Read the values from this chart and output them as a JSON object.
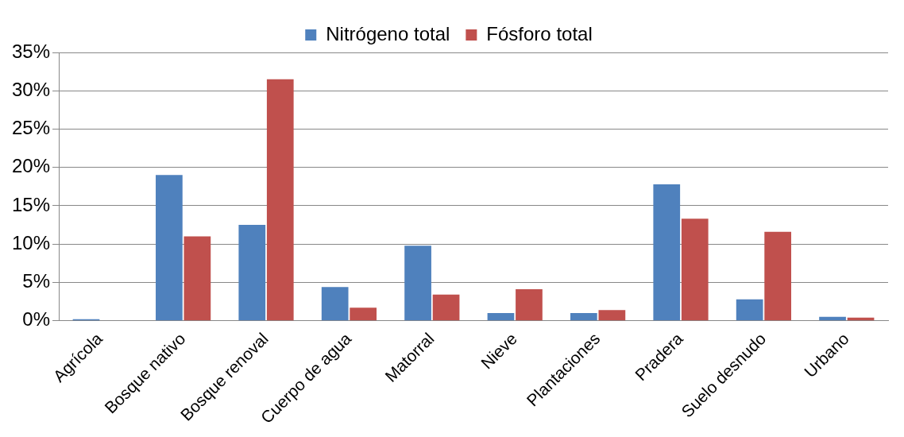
{
  "chart_data": {
    "type": "bar",
    "categories": [
      "Agrícola",
      "Bosque nativo",
      "Bosque renoval",
      "Cuerpo de agua",
      "Matorral",
      "Nieve",
      "Plantaciones",
      "Pradera",
      "Suelo desnudo",
      "Urbano"
    ],
    "series": [
      {
        "name": "Nitrógeno total",
        "color": "#4f81bd",
        "values": [
          0.2,
          19,
          12.5,
          4.4,
          9.8,
          1.0,
          1.0,
          17.8,
          2.8,
          0.5
        ]
      },
      {
        "name": "Fósforo total",
        "color": "#c0504d",
        "values": [
          null,
          11,
          31.5,
          1.7,
          3.4,
          4.1,
          1.4,
          13.3,
          11.6,
          0.4
        ]
      }
    ],
    "ylim": [
      0,
      35
    ],
    "yticks": [
      {
        "value": 0,
        "label": "0%"
      },
      {
        "value": 5,
        "label": "5%"
      },
      {
        "value": 10,
        "label": "10%"
      },
      {
        "value": 15,
        "label": "15%"
      },
      {
        "value": 20,
        "label": "20%"
      },
      {
        "value": 25,
        "label": "25%"
      },
      {
        "value": 30,
        "label": "30%"
      },
      {
        "value": 35,
        "label": "35%"
      }
    ],
    "grid": "y",
    "legend": "top"
  }
}
